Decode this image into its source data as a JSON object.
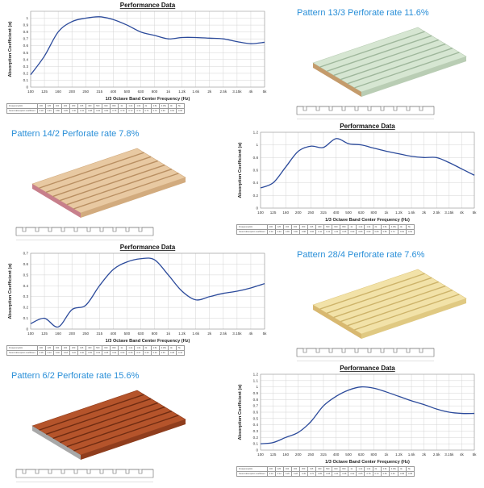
{
  "rows": [
    {
      "chart_side": "left",
      "pattern": "Pattern 13/3 Perforate rate 11.6%",
      "panel_style": "mint",
      "chart_data": {
        "type": "line",
        "title": "Performance Data",
        "xlabel": "1/3 Octave Band Center Frequency (Hz)",
        "ylabel": "Absorption Coefficient (α)",
        "categories": [
          "100",
          "125",
          "160",
          "200",
          "250",
          "315",
          "400",
          "500",
          "630",
          "800",
          "1k",
          "1.2k",
          "1.6k",
          "2k",
          "2.5k",
          "3.15k",
          "4k",
          "5k"
        ],
        "ylim": [
          0,
          1.1
        ],
        "yticks": [
          "0",
          "0.1",
          "0.2",
          "0.3",
          "0.4",
          "0.5",
          "0.6",
          "0.7",
          "0.8",
          "0.9",
          "1"
        ],
        "values": [
          0.18,
          0.45,
          0.8,
          0.95,
          1.0,
          1.02,
          0.98,
          0.9,
          0.8,
          0.75,
          0.7,
          0.72,
          0.72,
          0.71,
          0.7,
          0.66,
          0.63,
          0.65
        ],
        "grid": true,
        "table_rows": [
          "Frequency(Hz)",
          "Sound absorption coefficient"
        ]
      }
    },
    {
      "chart_side": "right",
      "pattern": "Pattern 14/2 Perforate rate 7.8%",
      "panel_style": "wood",
      "chart_data": {
        "type": "line",
        "title": "Performance Data",
        "xlabel": "1/3 Octave Band Center Frequency (Hz)",
        "ylabel": "Absorption Coefficient (α)",
        "categories": [
          "100",
          "125",
          "160",
          "200",
          "250",
          "315",
          "400",
          "500",
          "630",
          "800",
          "1k",
          "1.2k",
          "1.6k",
          "2k",
          "2.5k",
          "3.15k",
          "4k",
          "5k"
        ],
        "ylim": [
          0,
          1.2
        ],
        "yticks": [
          "0",
          "0.2",
          "0.4",
          "0.6",
          "0.8",
          "1",
          "1.2"
        ],
        "values": [
          0.32,
          0.4,
          0.65,
          0.9,
          0.98,
          0.96,
          1.1,
          1.02,
          1.0,
          0.95,
          0.9,
          0.86,
          0.82,
          0.8,
          0.8,
          0.72,
          0.62,
          0.52
        ],
        "grid": true,
        "table_rows": [
          "Frequency(Hz)",
          "Sound absorption coefficient"
        ]
      }
    },
    {
      "chart_side": "left",
      "pattern": "Pattern 28/4 Perforate rate 7.6%",
      "panel_style": "cream",
      "chart_data": {
        "type": "line",
        "title": "Performance Data",
        "xlabel": "1/3 Octave Band Center Frequency (Hz)",
        "ylabel": "Absorption Coefficient (α)",
        "categories": [
          "100",
          "125",
          "160",
          "200",
          "250",
          "315",
          "400",
          "500",
          "630",
          "800",
          "1k",
          "1.2k",
          "1.6k",
          "2k",
          "2.5k",
          "3.15k",
          "4k",
          "5k"
        ],
        "ylim": [
          0,
          0.7
        ],
        "yticks": [
          "0",
          "0.1",
          "0.2",
          "0.3",
          "0.4",
          "0.5",
          "0.6",
          "0.7"
        ],
        "values": [
          0.05,
          0.1,
          0.02,
          0.18,
          0.22,
          0.4,
          0.55,
          0.62,
          0.65,
          0.64,
          0.5,
          0.35,
          0.27,
          0.3,
          0.33,
          0.35,
          0.38,
          0.42
        ],
        "grid": true,
        "table_rows": [
          "Frequency(Hz)",
          "Sound absorption coefficient"
        ]
      }
    },
    {
      "chart_side": "right",
      "pattern": "Pattern 6/2 Perforate rate 15.6%",
      "panel_style": "cherry",
      "chart_data": {
        "type": "line",
        "title": "Performance Data",
        "xlabel": "1/3 Octave Band Center Frequency (Hz)",
        "ylabel": "Absorption Coefficient (α)",
        "categories": [
          "100",
          "125",
          "160",
          "200",
          "250",
          "315",
          "400",
          "500",
          "630",
          "800",
          "1k",
          "1.2k",
          "1.6k",
          "2k",
          "2.5k",
          "3.15k",
          "4k",
          "5k"
        ],
        "ylim": [
          0,
          1.2
        ],
        "yticks": [
          "0",
          "0.1",
          "0.2",
          "0.3",
          "0.4",
          "0.5",
          "0.6",
          "0.7",
          "0.8",
          "0.9",
          "1",
          "1.1",
          "1.2"
        ],
        "values": [
          0.1,
          0.12,
          0.2,
          0.28,
          0.45,
          0.7,
          0.85,
          0.95,
          1.0,
          0.98,
          0.92,
          0.85,
          0.78,
          0.72,
          0.65,
          0.6,
          0.58,
          0.58
        ],
        "grid": true,
        "table_rows": [
          "Frequency(Hz)",
          "Sound absorption coefficient"
        ]
      }
    }
  ],
  "colors": {
    "line": "#2b4a9b",
    "grid": "#d4d4d4",
    "title_blue": "#2a8fd8"
  }
}
